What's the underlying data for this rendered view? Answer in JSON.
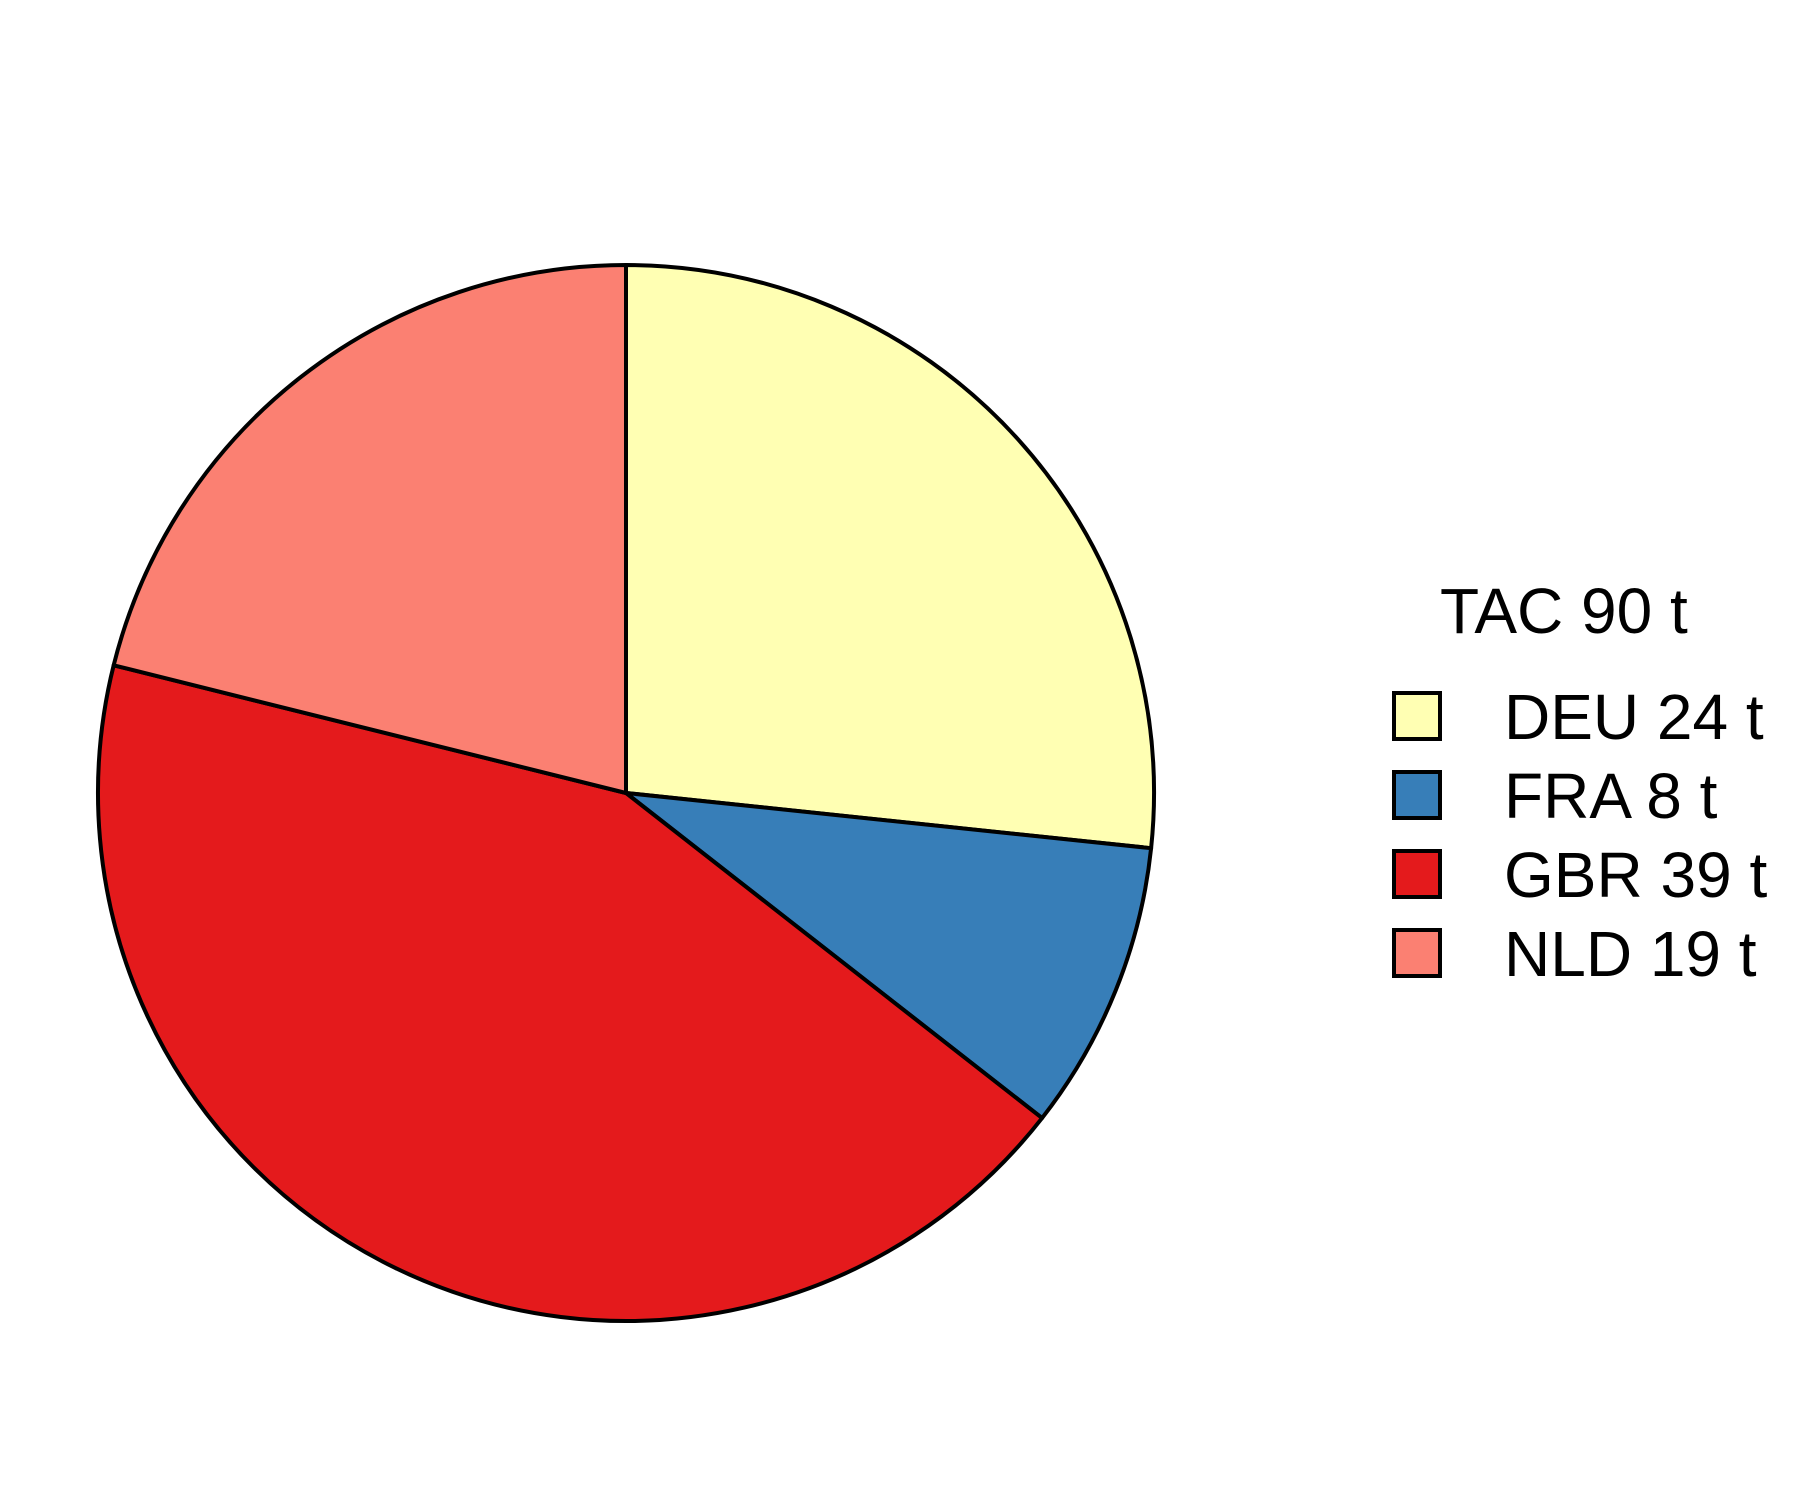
{
  "chart_data": {
    "type": "pie",
    "legend_title": "TAC 90 t",
    "legend_placement": "right",
    "start_angle": "12 o'clock",
    "direction": "clockwise",
    "slices": [
      {
        "label": "DEU 24 t",
        "value": 24,
        "color": "#FFFFB3"
      },
      {
        "label": "FRA 8 t",
        "value": 8,
        "color": "#377EB8"
      },
      {
        "label": "GBR 39 t",
        "value": 39,
        "color": "#E41A1C"
      },
      {
        "label": "NLD 19 t",
        "value": 19,
        "color": "#FB8072"
      }
    ],
    "outline_color": "#000000"
  }
}
